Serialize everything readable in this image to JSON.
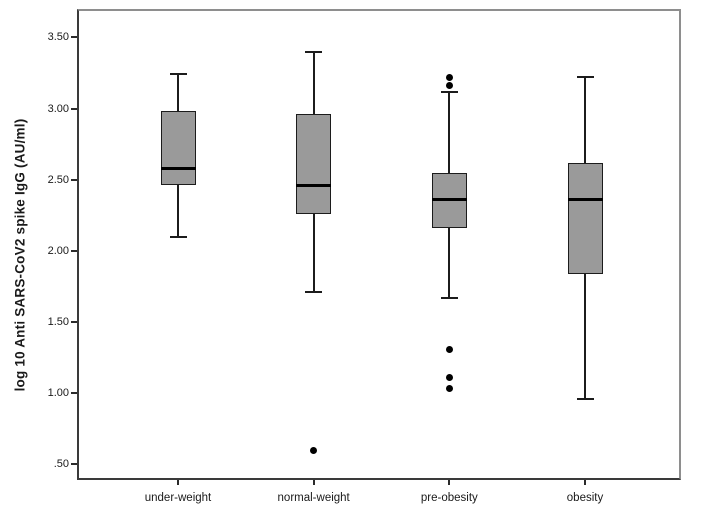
{
  "figure": {
    "background_color": "#ffffff"
  },
  "chart_data": {
    "type": "boxplot",
    "title": "",
    "xlabel": "",
    "ylabel": "log 10 Anti SARS-CoV2 spike IgG (AU/ml)",
    "ylim": [
      0.39,
      3.7
    ],
    "grid": false,
    "legend": "none",
    "yticks": [
      {
        "label": "3.50",
        "value": 3.5
      },
      {
        "label": "3.00",
        "value": 3.0
      },
      {
        "label": "2.50",
        "value": 2.5
      },
      {
        "label": "2.00",
        "value": 2.0
      },
      {
        "label": "1.50",
        "value": 1.5
      },
      {
        "label": "1.00",
        "value": 1.0
      },
      {
        "label": ".50",
        "value": 0.5
      }
    ],
    "categories": [
      "under-weight",
      "normal-weight",
      "pre-obesity",
      "obesity"
    ],
    "series": [
      {
        "category": "under-weight",
        "whisker_low": 2.1,
        "q1": 2.46,
        "median": 2.58,
        "q3": 2.98,
        "whisker_high": 3.24,
        "outliers": []
      },
      {
        "category": "normal-weight",
        "whisker_low": 1.71,
        "q1": 2.26,
        "median": 2.46,
        "q3": 2.96,
        "whisker_high": 3.4,
        "outliers": [
          0.6
        ]
      },
      {
        "category": "pre-obesity",
        "whisker_low": 1.67,
        "q1": 2.16,
        "median": 2.36,
        "q3": 2.55,
        "whisker_high": 3.12,
        "outliers": [
          3.22,
          3.16,
          1.31,
          1.11,
          1.03
        ]
      },
      {
        "category": "obesity",
        "whisker_low": 0.96,
        "q1": 1.84,
        "median": 2.36,
        "q3": 2.62,
        "whisker_high": 3.22,
        "outliers": []
      }
    ],
    "colors": {
      "box_fill": "#9a9a9a",
      "box_border": "#1c1c1c",
      "median": "#000000",
      "whisker": "#1c1c1c",
      "outlier": "#000000",
      "frame_light": "#8e8e8e",
      "frame_dark": "#3a3a3a",
      "text": "#1a1a1a",
      "background": "#ffffff"
    }
  }
}
